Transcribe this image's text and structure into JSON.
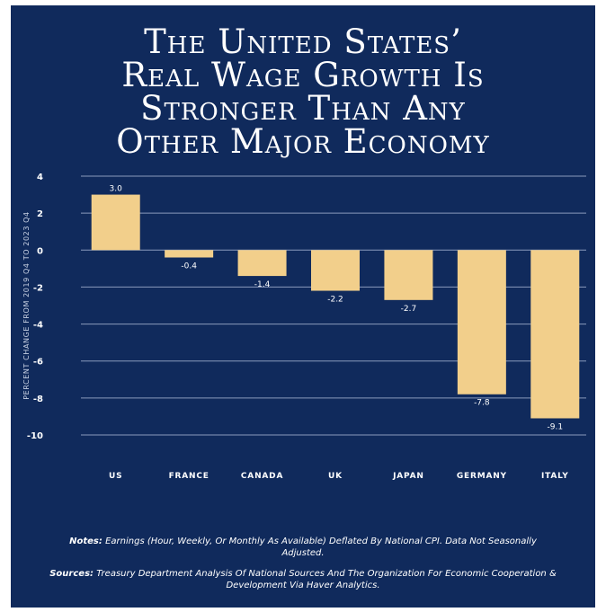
{
  "title_lines": [
    "The United States’",
    "Real Wage Growth Is",
    "Stronger Than Any",
    "Other Major Economy"
  ],
  "colors": {
    "background": "#102a5c",
    "bar": "#f2cf8b",
    "grid": "#8a9bbd",
    "text": "#ffffff"
  },
  "chart_data": {
    "type": "bar",
    "categories": [
      "US",
      "France",
      "Canada",
      "UK",
      "Japan",
      "Germany",
      "Italy"
    ],
    "values": [
      3.0,
      -0.4,
      -1.4,
      -2.2,
      -2.7,
      -7.8,
      -9.1
    ],
    "value_labels": [
      "3.0",
      "-0.4",
      "-1.4",
      "-2.2",
      "-2.7",
      "-7.8",
      "-9.1"
    ],
    "ylabel": "Percent change from 2019 Q4 to 2023 Q4",
    "ylim": [
      -10,
      4
    ],
    "yticks": [
      4,
      2,
      0,
      -2,
      -4,
      -6,
      -8,
      -10
    ],
    "grid": true
  },
  "notes": {
    "notes_label": "Notes:",
    "notes_text": "Earnings (Hour, Weekly, Or Monthly As Available) Deflated By National CPI. Data Not Seasonally Adjusted.",
    "sources_label": "Sources:",
    "sources_text": "Treasury Department Analysis Of National Sources And The Organization For Economic Cooperation & Development Via Haver Analytics."
  }
}
